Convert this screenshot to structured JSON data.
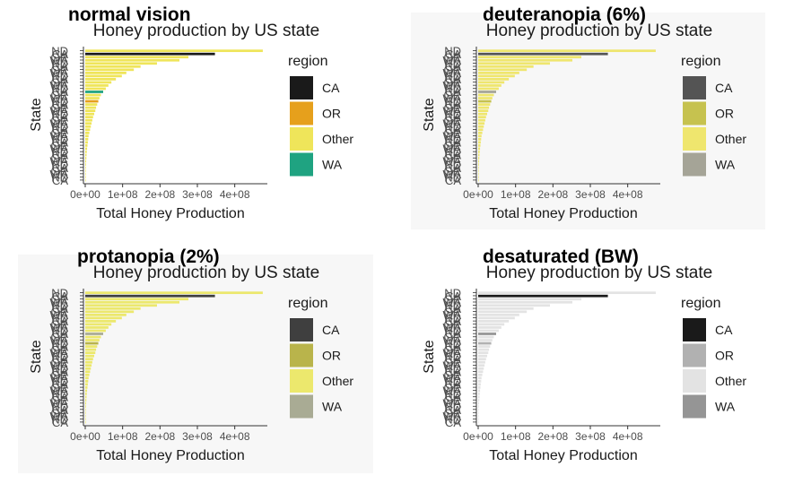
{
  "panels": [
    {
      "heading": "normal vision",
      "palette": {
        "CA": "#1a1a1a",
        "OR": "#e6a01c",
        "Other": "#efe55a",
        "WA": "#1fa381"
      },
      "background": "#ffffff"
    },
    {
      "heading": "deuteranopia (6%)",
      "palette": {
        "CA": "#545454",
        "OR": "#c6c24f",
        "Other": "#efe66e",
        "WA": "#a5a497"
      },
      "background": "#f7f7f7"
    },
    {
      "heading": "protanopia (2%)",
      "palette": {
        "CA": "#3f3f3f",
        "OR": "#b9b44b",
        "Other": "#ece86d",
        "WA": "#a9ab94"
      },
      "background": "#f7f7f7"
    },
    {
      "heading": "desaturated (BW)",
      "palette": {
        "CA": "#1a1a1a",
        "OR": "#b1b1b1",
        "Other": "#e3e3e3",
        "WA": "#959595"
      },
      "background": "#ffffff"
    }
  ],
  "chart_data": {
    "type": "bar",
    "orientation": "horizontal",
    "title": "Honey production by US state",
    "xlabel": "Total Honey Production",
    "ylabel": "State",
    "xlim": [
      0,
      480000000
    ],
    "x_ticks": [
      0,
      100000000,
      200000000,
      300000000,
      400000000
    ],
    "x_tick_labels": [
      "0e+00",
      "1e+08",
      "2e+08",
      "3e+08",
      "4e+08"
    ],
    "legend": {
      "title": "region",
      "position": "right",
      "entries": [
        "CA",
        "OR",
        "Other",
        "WA"
      ]
    },
    "grid": false,
    "state_labels_visible": [
      "ND",
      "CA",
      "OR",
      "WA"
    ],
    "bars": [
      {
        "region": "Other",
        "value": 475000000
      },
      {
        "region": "CA",
        "value": 347000000
      },
      {
        "region": "Other",
        "value": 276000000
      },
      {
        "region": "Other",
        "value": 252000000
      },
      {
        "region": "Other",
        "value": 192000000
      },
      {
        "region": "Other",
        "value": 148000000
      },
      {
        "region": "Other",
        "value": 130000000
      },
      {
        "region": "Other",
        "value": 110000000
      },
      {
        "region": "Other",
        "value": 98000000
      },
      {
        "region": "Other",
        "value": 82000000
      },
      {
        "region": "Other",
        "value": 70000000
      },
      {
        "region": "Other",
        "value": 62000000
      },
      {
        "region": "Other",
        "value": 55000000
      },
      {
        "region": "WA",
        "value": 48000000
      },
      {
        "region": "Other",
        "value": 42000000
      },
      {
        "region": "Other",
        "value": 38000000
      },
      {
        "region": "OR",
        "value": 35000000
      },
      {
        "region": "Other",
        "value": 32000000
      },
      {
        "region": "Other",
        "value": 29000000
      },
      {
        "region": "Other",
        "value": 27000000
      },
      {
        "region": "Other",
        "value": 24000000
      },
      {
        "region": "Other",
        "value": 21000000
      },
      {
        "region": "Other",
        "value": 19000000
      },
      {
        "region": "Other",
        "value": 17000000
      },
      {
        "region": "Other",
        "value": 15000000
      },
      {
        "region": "Other",
        "value": 13000000
      },
      {
        "region": "Other",
        "value": 11000000
      },
      {
        "region": "Other",
        "value": 9000000
      },
      {
        "region": "Other",
        "value": 8000000
      },
      {
        "region": "Other",
        "value": 7000000
      },
      {
        "region": "Other",
        "value": 6000000
      },
      {
        "region": "Other",
        "value": 5000000
      },
      {
        "region": "Other",
        "value": 4000000
      },
      {
        "region": "Other",
        "value": 3500000
      },
      {
        "region": "Other",
        "value": 3000000
      },
      {
        "region": "Other",
        "value": 2500000
      },
      {
        "region": "Other",
        "value": 2000000
      },
      {
        "region": "Other",
        "value": 1600000
      },
      {
        "region": "Other",
        "value": 1200000
      },
      {
        "region": "Other",
        "value": 900000
      },
      {
        "region": "Other",
        "value": 600000
      },
      {
        "region": "Other",
        "value": 300000
      }
    ]
  }
}
